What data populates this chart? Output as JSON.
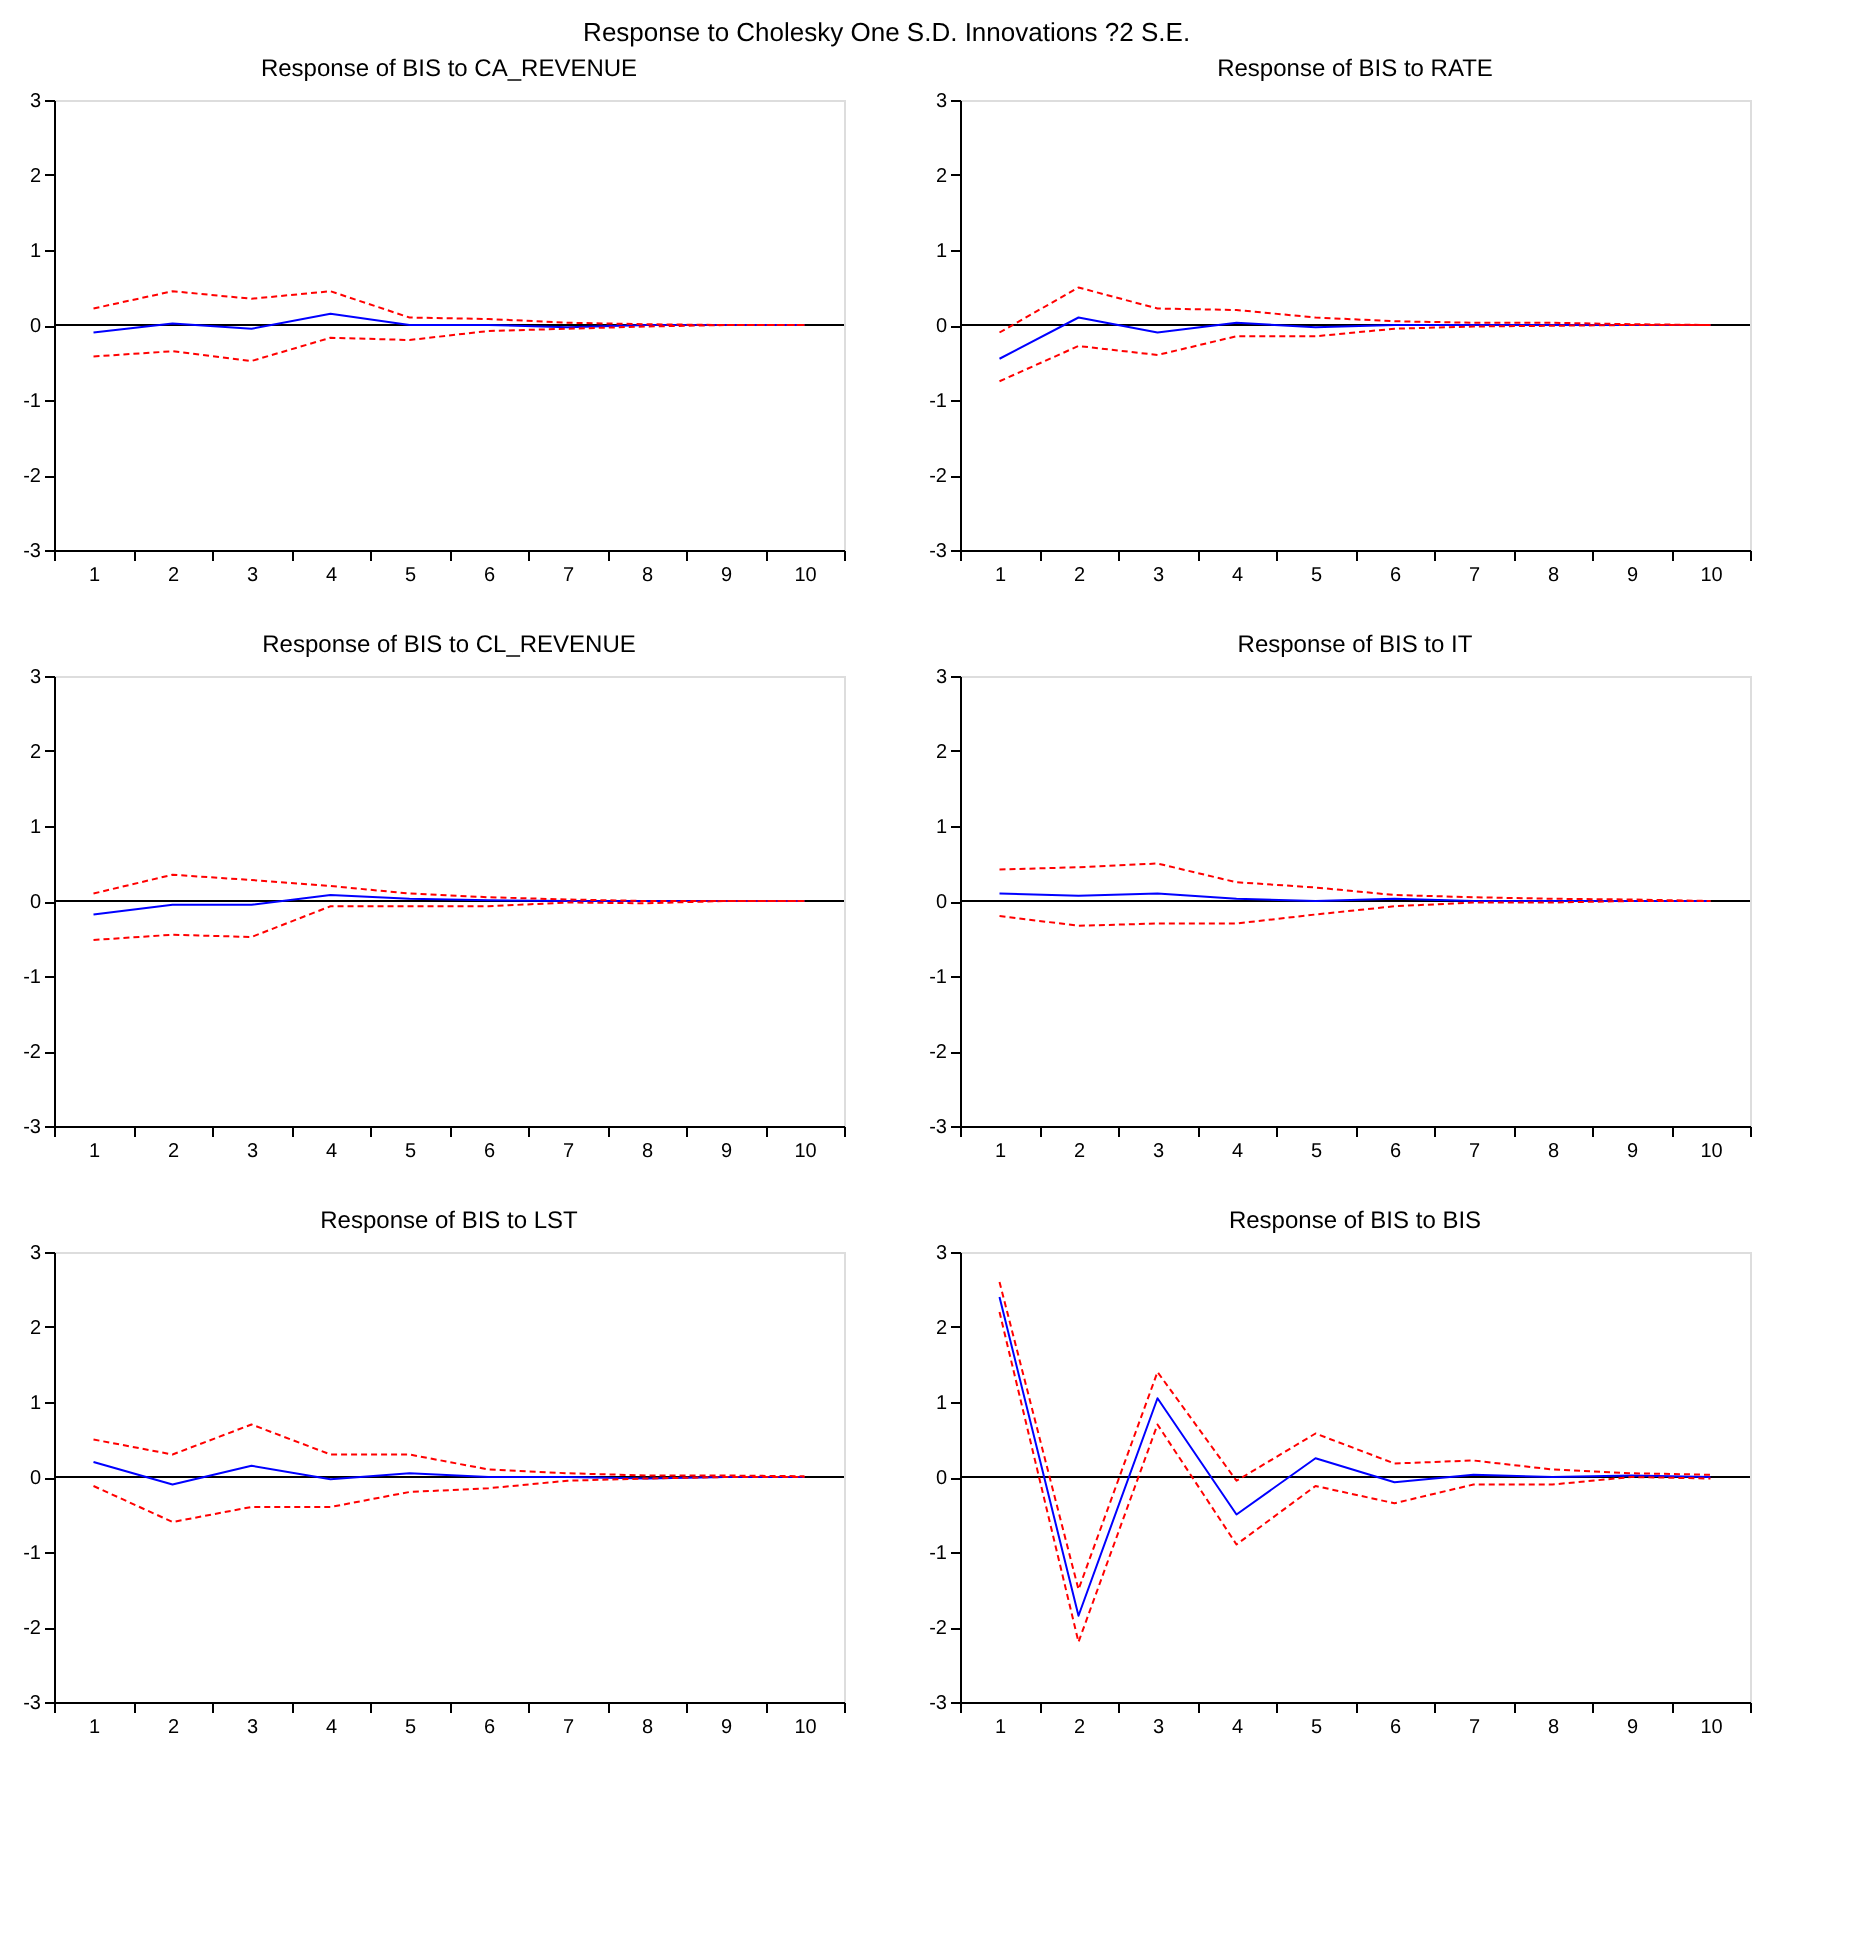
{
  "chart_data": [
    {
      "type": "line",
      "title": "Response of BIS to CA_REVENUE",
      "categories": [
        "1",
        "2",
        "3",
        "4",
        "5",
        "6",
        "7",
        "8",
        "9",
        "10"
      ],
      "ylim": [
        -3,
        3
      ],
      "yticks": [
        -3,
        -2,
        -1,
        0,
        1,
        2,
        3
      ],
      "grid": false,
      "ref_lines": [
        {
          "axis": "y",
          "value": 0,
          "color": "#000000"
        }
      ],
      "annotations": [
        "Response to Cholesky One S.D. Innovations ?2 S.E."
      ],
      "series": [
        {
          "color": "#0000ff",
          "line_style": "solid",
          "values": [
            -0.1,
            0.02,
            -0.05,
            0.15,
            0.0,
            0.0,
            -0.03,
            0.0,
            0.0,
            0.0
          ]
        },
        {
          "color": "#ff0000",
          "line_style": "dashed",
          "values": [
            0.22,
            0.45,
            0.35,
            0.45,
            0.1,
            0.08,
            0.03,
            0.01,
            0.0,
            0.0
          ]
        },
        {
          "color": "#ff0000",
          "line_style": "dashed",
          "values": [
            -0.42,
            -0.35,
            -0.48,
            -0.17,
            -0.2,
            -0.08,
            -0.05,
            -0.02,
            0.0,
            0.0
          ]
        }
      ]
    },
    {
      "type": "line",
      "title": "Response of BIS to RATE",
      "categories": [
        "1",
        "2",
        "3",
        "4",
        "5",
        "6",
        "7",
        "8",
        "9",
        "10"
      ],
      "ylim": [
        -3,
        3
      ],
      "yticks": [
        -3,
        -2,
        -1,
        0,
        1,
        2,
        3
      ],
      "grid": false,
      "ref_lines": [
        {
          "axis": "y",
          "value": 0,
          "color": "#000000"
        }
      ],
      "series": [
        {
          "color": "#0000ff",
          "line_style": "solid",
          "values": [
            -0.45,
            0.1,
            -0.1,
            0.03,
            -0.03,
            0.0,
            0.0,
            0.0,
            0.0,
            0.0
          ]
        },
        {
          "color": "#ff0000",
          "line_style": "dashed",
          "values": [
            -0.1,
            0.5,
            0.22,
            0.2,
            0.1,
            0.05,
            0.03,
            0.03,
            0.01,
            0.0
          ]
        },
        {
          "color": "#ff0000",
          "line_style": "dashed",
          "values": [
            -0.75,
            -0.28,
            -0.4,
            -0.15,
            -0.15,
            -0.05,
            -0.02,
            -0.01,
            0.0,
            0.0
          ]
        }
      ]
    },
    {
      "type": "line",
      "title": "Response of BIS to CL_REVENUE",
      "categories": [
        "1",
        "2",
        "3",
        "4",
        "5",
        "6",
        "7",
        "8",
        "9",
        "10"
      ],
      "ylim": [
        -3,
        3
      ],
      "yticks": [
        -3,
        -2,
        -1,
        0,
        1,
        2,
        3
      ],
      "grid": false,
      "ref_lines": [
        {
          "axis": "y",
          "value": 0,
          "color": "#000000"
        }
      ],
      "series": [
        {
          "color": "#0000ff",
          "line_style": "solid",
          "values": [
            -0.18,
            -0.05,
            -0.05,
            0.08,
            0.03,
            0.01,
            0.0,
            0.0,
            0.0,
            0.0
          ]
        },
        {
          "color": "#ff0000",
          "line_style": "dashed",
          "values": [
            0.1,
            0.35,
            0.28,
            0.2,
            0.1,
            0.05,
            0.02,
            0.0,
            0.0,
            0.0
          ]
        },
        {
          "color": "#ff0000",
          "line_style": "dashed",
          "values": [
            -0.52,
            -0.45,
            -0.48,
            -0.07,
            -0.07,
            -0.07,
            -0.02,
            -0.03,
            0.0,
            0.0
          ]
        }
      ]
    },
    {
      "type": "line",
      "title": "Response of BIS to IT",
      "categories": [
        "1",
        "2",
        "3",
        "4",
        "5",
        "6",
        "7",
        "8",
        "9",
        "10"
      ],
      "ylim": [
        -3,
        3
      ],
      "yticks": [
        -3,
        -2,
        -1,
        0,
        1,
        2,
        3
      ],
      "grid": false,
      "ref_lines": [
        {
          "axis": "y",
          "value": 0,
          "color": "#000000"
        }
      ],
      "series": [
        {
          "color": "#0000ff",
          "line_style": "solid",
          "values": [
            0.1,
            0.07,
            0.1,
            0.03,
            0.0,
            0.03,
            0.0,
            0.0,
            0.0,
            0.0
          ]
        },
        {
          "color": "#ff0000",
          "line_style": "dashed",
          "values": [
            0.42,
            0.45,
            0.5,
            0.25,
            0.18,
            0.08,
            0.05,
            0.03,
            0.02,
            0.0
          ]
        },
        {
          "color": "#ff0000",
          "line_style": "dashed",
          "values": [
            -0.2,
            -0.33,
            -0.3,
            -0.3,
            -0.18,
            -0.07,
            -0.02,
            -0.02,
            0.0,
            0.0
          ]
        }
      ]
    },
    {
      "type": "line",
      "title": "Response of BIS to LST",
      "categories": [
        "1",
        "2",
        "3",
        "4",
        "5",
        "6",
        "7",
        "8",
        "9",
        "10"
      ],
      "ylim": [
        -3,
        3
      ],
      "yticks": [
        -3,
        -2,
        -1,
        0,
        1,
        2,
        3
      ],
      "grid": false,
      "ref_lines": [
        {
          "axis": "y",
          "value": 0,
          "color": "#000000"
        }
      ],
      "series": [
        {
          "color": "#0000ff",
          "line_style": "solid",
          "values": [
            0.2,
            -0.1,
            0.15,
            -0.03,
            0.05,
            0.0,
            0.0,
            -0.02,
            0.0,
            0.0
          ]
        },
        {
          "color": "#ff0000",
          "line_style": "dashed",
          "values": [
            0.5,
            0.3,
            0.7,
            0.3,
            0.3,
            0.1,
            0.05,
            0.02,
            0.02,
            0.01
          ]
        },
        {
          "color": "#ff0000",
          "line_style": "dashed",
          "values": [
            -0.12,
            -0.6,
            -0.4,
            -0.4,
            -0.2,
            -0.15,
            -0.05,
            -0.02,
            0.0,
            0.0
          ]
        }
      ]
    },
    {
      "type": "line",
      "title": "Response of BIS to BIS",
      "categories": [
        "1",
        "2",
        "3",
        "4",
        "5",
        "6",
        "7",
        "8",
        "9",
        "10"
      ],
      "ylim": [
        -3,
        3
      ],
      "yticks": [
        -3,
        -2,
        -1,
        0,
        1,
        2,
        3
      ],
      "grid": false,
      "ref_lines": [
        {
          "axis": "y",
          "value": 0,
          "color": "#000000"
        }
      ],
      "series": [
        {
          "color": "#0000ff",
          "line_style": "solid",
          "values": [
            2.4,
            -1.85,
            1.05,
            -0.5,
            0.25,
            -0.07,
            0.03,
            0.0,
            0.02,
            0.0
          ]
        },
        {
          "color": "#ff0000",
          "line_style": "dashed",
          "values": [
            2.6,
            -1.5,
            1.4,
            -0.05,
            0.58,
            0.18,
            0.22,
            0.1,
            0.05,
            0.03
          ]
        },
        {
          "color": "#ff0000",
          "line_style": "dashed",
          "values": [
            2.2,
            -2.2,
            0.7,
            -0.9,
            -0.12,
            -0.35,
            -0.1,
            -0.1,
            0.0,
            -0.02
          ]
        }
      ]
    }
  ]
}
